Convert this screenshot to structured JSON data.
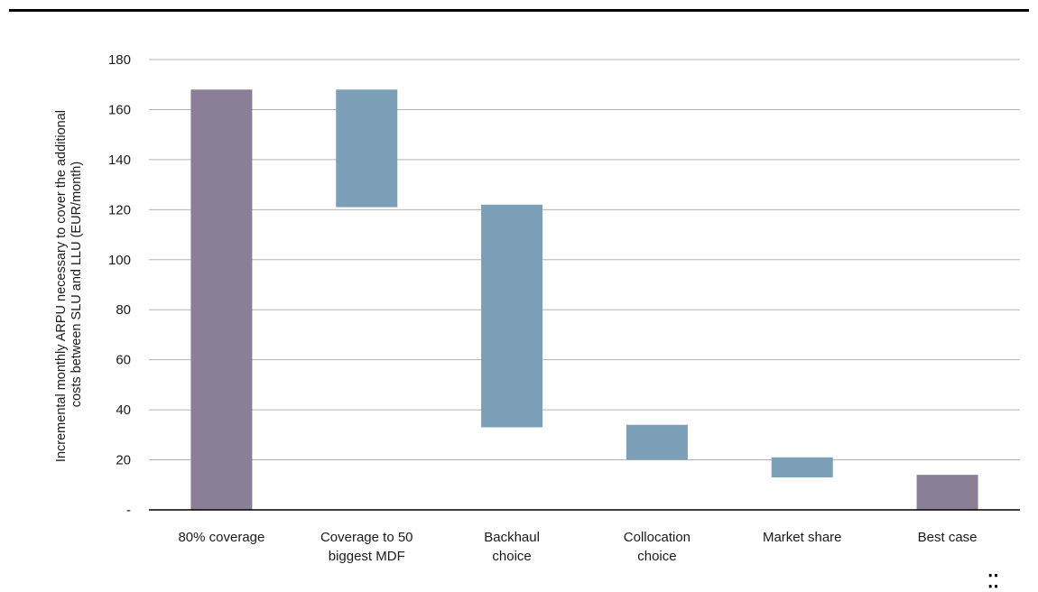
{
  "colors": {
    "total_bar": "#8b7f98",
    "step_bar": "#7a9fb7",
    "grid": "#b3b3b3",
    "axis": "#000000",
    "rule": "#000000"
  },
  "chart_data": {
    "type": "bar",
    "subtype": "waterfall",
    "title": "",
    "xlabel": "",
    "ylabel_lines": [
      "Incremental monthly ARPU necessary to cover the additional",
      "costs between SLU and LLU (EUR/month)"
    ],
    "ylim": [
      0,
      180
    ],
    "yticks": [
      {
        "value": 0,
        "label": "-"
      },
      {
        "value": 20,
        "label": "20"
      },
      {
        "value": 40,
        "label": "40"
      },
      {
        "value": 60,
        "label": "60"
      },
      {
        "value": 80,
        "label": "80"
      },
      {
        "value": 100,
        "label": "100"
      },
      {
        "value": 120,
        "label": "120"
      },
      {
        "value": 140,
        "label": "140"
      },
      {
        "value": 160,
        "label": "160"
      },
      {
        "value": 180,
        "label": "180"
      }
    ],
    "grid": true,
    "legend": "none",
    "bars": [
      {
        "category_lines": [
          "80% coverage"
        ],
        "kind": "total",
        "low": 0,
        "high": 168
      },
      {
        "category_lines": [
          "Coverage to 50",
          "biggest MDF"
        ],
        "kind": "step",
        "low": 121,
        "high": 168
      },
      {
        "category_lines": [
          "Backhaul",
          "choice"
        ],
        "kind": "step",
        "low": 33,
        "high": 122
      },
      {
        "category_lines": [
          "Collocation",
          "choice"
        ],
        "kind": "step",
        "low": 20,
        "high": 34
      },
      {
        "category_lines": [
          "Market share",
          ""
        ],
        "kind": "step",
        "low": 13,
        "high": 21
      },
      {
        "category_lines": [
          "Best case",
          ""
        ],
        "kind": "total",
        "low": 0,
        "high": 14
      }
    ]
  }
}
